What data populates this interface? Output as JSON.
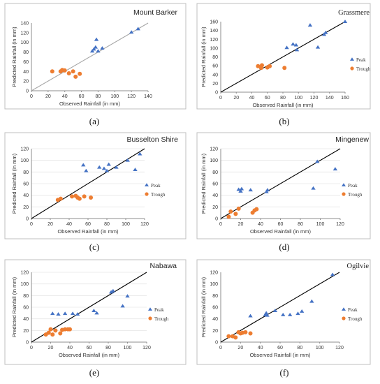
{
  "colors": {
    "peak": "#4472c4",
    "trough": "#ed7d31",
    "fit_line_a": "#a6a6a6",
    "fit_line": "#000000"
  },
  "chart_data": [
    {
      "type": "scatter",
      "caption": "(a)",
      "title": "Mount Barker",
      "xlabel": "Observed Rainfall (in mm)",
      "ylabel": "Predicted Rainfall (in mm)",
      "xlim": [
        0,
        140
      ],
      "ylim": [
        0,
        140
      ],
      "xticks": [
        "0",
        "20",
        "40",
        "60",
        "80",
        "100",
        "120",
        "140"
      ],
      "yticks": [
        "0",
        "20",
        "40",
        "60",
        "80",
        "100",
        "120",
        "140"
      ],
      "grid": false,
      "diagonal": true,
      "legend": null,
      "series": [
        {
          "symbol": "triangle",
          "points": [
            [
              73,
              82
            ],
            [
              75,
              86
            ],
            [
              77,
              90
            ],
            [
              78,
              106
            ],
            [
              80,
              82
            ],
            [
              85,
              88
            ],
            [
              120,
              121
            ],
            [
              128,
              128
            ]
          ]
        },
        {
          "symbol": "circle",
          "points": [
            [
              25,
              40
            ],
            [
              35,
              40
            ],
            [
              37,
              43
            ],
            [
              40,
              42
            ],
            [
              45,
              36
            ],
            [
              50,
              40
            ],
            [
              53,
              29
            ],
            [
              58,
              35
            ]
          ]
        }
      ]
    },
    {
      "type": "scatter",
      "caption": "(b)",
      "title": "Grassmere",
      "xlabel": "Observed Rainfall (in mm)",
      "ylabel": "Predicted Rainfall (in mm)",
      "xlim": [
        0,
        160
      ],
      "ylim": [
        0,
        160
      ],
      "xticks": [
        "0",
        "20",
        "40",
        "60",
        "80",
        "100",
        "120",
        "140",
        "160"
      ],
      "yticks": [
        "0",
        "20",
        "40",
        "60",
        "80",
        "100",
        "120",
        "140",
        "160"
      ],
      "grid": false,
      "diagonal": true,
      "legend": [
        "Peak",
        "Trough"
      ],
      "series": [
        {
          "name": "Peak",
          "symbol": "triangle",
          "points": [
            [
              85,
              101
            ],
            [
              93,
              109
            ],
            [
              97,
              107
            ],
            [
              98,
              96
            ],
            [
              115,
              152
            ],
            [
              125,
              102
            ],
            [
              133,
              131
            ],
            [
              135,
              135
            ],
            [
              160,
              160
            ]
          ]
        },
        {
          "name": "Trough",
          "symbol": "circle",
          "points": [
            [
              48,
              59
            ],
            [
              52,
              55
            ],
            [
              53,
              61
            ],
            [
              60,
              56
            ],
            [
              63,
              59
            ],
            [
              82,
              55
            ]
          ]
        }
      ]
    },
    {
      "type": "scatter",
      "caption": "(c)",
      "title": "Busselton Shire",
      "xlabel": "Observed Rainfall (in mm)",
      "ylabel": "Predicted Rainfall (in mm)",
      "xlim": [
        0,
        120
      ],
      "ylim": [
        0,
        120
      ],
      "xticks": [
        "0",
        "20",
        "40",
        "60",
        "80",
        "100",
        "120"
      ],
      "yticks": [
        "0",
        "20",
        "40",
        "60",
        "80",
        "100",
        "120"
      ],
      "grid": true,
      "diagonal": true,
      "legend": [
        "Peak",
        "Trough"
      ],
      "series": [
        {
          "name": "Peak",
          "symbol": "triangle",
          "points": [
            [
              55,
              92
            ],
            [
              58,
              82
            ],
            [
              72,
              88
            ],
            [
              77,
              86
            ],
            [
              80,
              82
            ],
            [
              82,
              93
            ],
            [
              90,
              88
            ],
            [
              102,
              100
            ],
            [
              110,
              84
            ],
            [
              115,
              111
            ]
          ]
        },
        {
          "name": "Trough",
          "symbol": "circle",
          "points": [
            [
              28,
              32
            ],
            [
              31,
              34
            ],
            [
              43,
              38
            ],
            [
              47,
              39
            ],
            [
              49,
              36
            ],
            [
              51,
              34
            ],
            [
              56,
              38
            ],
            [
              63,
              36
            ]
          ]
        }
      ]
    },
    {
      "type": "scatter",
      "caption": "(d)",
      "title": "Mingenew",
      "xlabel": "Observed Rainfall (in mm)",
      "ylabel": "Predicted Rainfall (in mm)",
      "xlim": [
        0,
        120
      ],
      "ylim": [
        0,
        120
      ],
      "xticks": [
        "0",
        "20",
        "40",
        "60",
        "80",
        "100",
        "120"
      ],
      "yticks": [
        "0",
        "20",
        "40",
        "60",
        "80",
        "100",
        "120"
      ],
      "grid": true,
      "diagonal": true,
      "legend": [
        "Peak",
        "Trough"
      ],
      "series": [
        {
          "name": "Peak",
          "symbol": "triangle",
          "points": [
            [
              18,
              50
            ],
            [
              20,
              47
            ],
            [
              21,
              51
            ],
            [
              30,
              49
            ],
            [
              46,
              46
            ],
            [
              47,
              49
            ],
            [
              93,
              52
            ],
            [
              97,
              98
            ],
            [
              115,
              85
            ]
          ]
        },
        {
          "name": "Trough",
          "symbol": "circle",
          "points": [
            [
              8,
              3
            ],
            [
              10,
              12
            ],
            [
              15,
              8
            ],
            [
              18,
              17
            ],
            [
              32,
              10
            ],
            [
              34,
              14
            ],
            [
              36,
              16
            ]
          ]
        }
      ]
    },
    {
      "type": "scatter",
      "caption": "(e)",
      "title": "Nabawa",
      "xlabel": "Observed Rainfall (in mm)",
      "ylabel": "Predicted Rainfall (in mm)",
      "xlim": [
        0,
        120
      ],
      "ylim": [
        0,
        120
      ],
      "xticks": [
        "0",
        "20",
        "40",
        "60",
        "80",
        "100",
        "120"
      ],
      "yticks": [
        "0",
        "20",
        "40",
        "60",
        "80",
        "100",
        "120"
      ],
      "grid": true,
      "diagonal": true,
      "legend": [
        "Peak",
        "Trough"
      ],
      "series": [
        {
          "name": "Peak",
          "symbol": "triangle",
          "points": [
            [
              22,
              49
            ],
            [
              28,
              48
            ],
            [
              35,
              49
            ],
            [
              43,
              49
            ],
            [
              48,
              48
            ],
            [
              65,
              54
            ],
            [
              68,
              50
            ],
            [
              83,
              86
            ],
            [
              85,
              88
            ],
            [
              95,
              62
            ],
            [
              100,
              79
            ]
          ]
        },
        {
          "name": "Trough",
          "symbol": "circle",
          "points": [
            [
              15,
              13
            ],
            [
              18,
              16
            ],
            [
              20,
              22
            ],
            [
              22,
              13
            ],
            [
              25,
              20
            ],
            [
              30,
              15
            ],
            [
              32,
              21
            ],
            [
              35,
              22
            ],
            [
              38,
              22
            ],
            [
              40,
              22
            ]
          ]
        }
      ]
    },
    {
      "type": "scatter",
      "caption": "(f)",
      "title": "Ogilvie",
      "xlabel": "Observed Rainfall (in mm)",
      "ylabel": "Predicted Rainfall (in mm)",
      "xlim": [
        0,
        120
      ],
      "ylim": [
        0,
        120
      ],
      "xticks": [
        "0",
        "20",
        "40",
        "60",
        "80",
        "100",
        "120"
      ],
      "yticks": [
        "0",
        "20",
        "40",
        "60",
        "80",
        "100",
        "120"
      ],
      "grid": false,
      "diagonal": true,
      "legend": [
        "Peak",
        "Trough"
      ],
      "series": [
        {
          "name": "Peak",
          "symbol": "triangle",
          "points": [
            [
              30,
              45
            ],
            [
              45,
              47
            ],
            [
              46,
              50
            ],
            [
              47,
              46
            ],
            [
              55,
              54
            ],
            [
              63,
              47
            ],
            [
              70,
              47
            ],
            [
              78,
              49
            ],
            [
              82,
              53
            ],
            [
              92,
              70
            ],
            [
              113,
              116
            ]
          ]
        },
        {
          "name": "Trough",
          "symbol": "circle",
          "points": [
            [
              8,
              10
            ],
            [
              12,
              10
            ],
            [
              15,
              8
            ],
            [
              18,
              17
            ],
            [
              20,
              15
            ],
            [
              22,
              16
            ],
            [
              25,
              17
            ],
            [
              30,
              15
            ]
          ]
        }
      ]
    }
  ]
}
